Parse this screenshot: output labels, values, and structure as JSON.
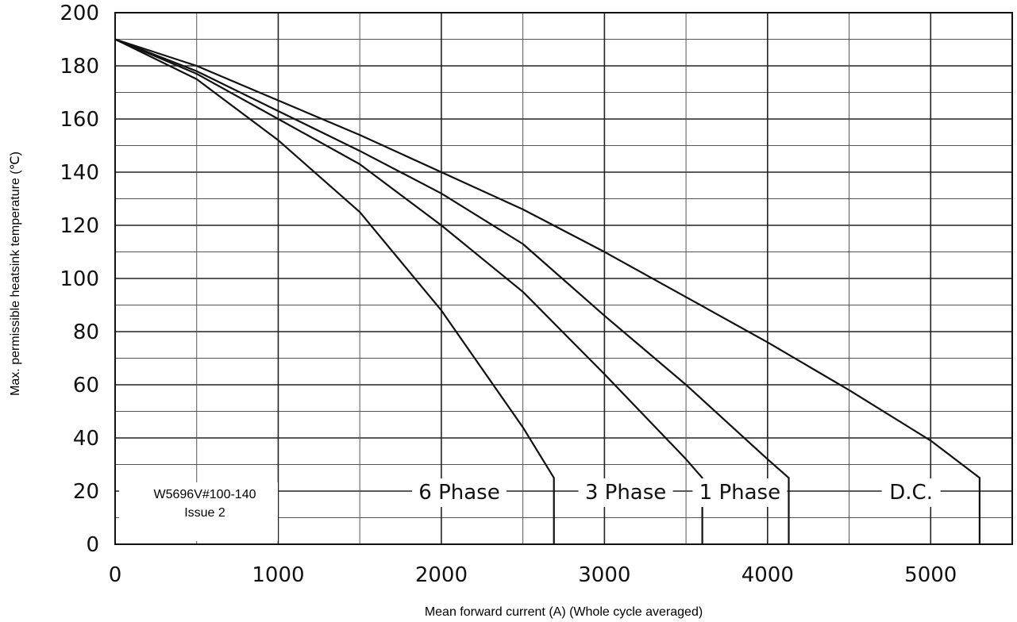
{
  "chart_data": {
    "type": "line",
    "xlabel": "Mean forward current (A) (Whole cycle averaged)",
    "ylabel": "Max. permissible heatsink temperature  (℃)",
    "xlim": [
      0,
      5500
    ],
    "ylim": [
      0,
      200
    ],
    "x_ticks": [
      "0",
      "1000",
      "2000",
      "3000",
      "4000",
      "5000"
    ],
    "y_ticks": [
      "0",
      "20",
      "40",
      "60",
      "80",
      "100",
      "120",
      "140",
      "160",
      "180",
      "200"
    ],
    "grid": true,
    "series": [
      {
        "name": "6 Phase",
        "x": [
          0,
          500,
          1000,
          1500,
          2000,
          2500,
          2690,
          2690
        ],
        "y": [
          190,
          175,
          152,
          125,
          88,
          44,
          25,
          0
        ]
      },
      {
        "name": "3 Phase",
        "x": [
          0,
          500,
          1000,
          1500,
          2000,
          2500,
          3000,
          3500,
          3600,
          3600
        ],
        "y": [
          190,
          177,
          160,
          143,
          120,
          95,
          64,
          32,
          25,
          0
        ]
      },
      {
        "name": "1 Phase",
        "x": [
          0,
          500,
          1000,
          1500,
          2000,
          2500,
          3000,
          3500,
          4000,
          4130,
          4130
        ],
        "y": [
          190,
          178,
          163,
          148,
          132,
          113,
          86,
          60,
          32,
          25,
          0
        ]
      },
      {
        "name": "D.C.",
        "x": [
          0,
          500,
          1000,
          1500,
          2000,
          2500,
          3000,
          3500,
          4000,
          4500,
          5000,
          5300,
          5300
        ],
        "y": [
          190,
          180,
          167,
          154,
          140,
          126,
          110,
          93,
          76,
          58,
          39,
          25,
          0
        ]
      }
    ],
    "annotations": [
      "W5696V#100-140",
      "Issue 2"
    ]
  }
}
